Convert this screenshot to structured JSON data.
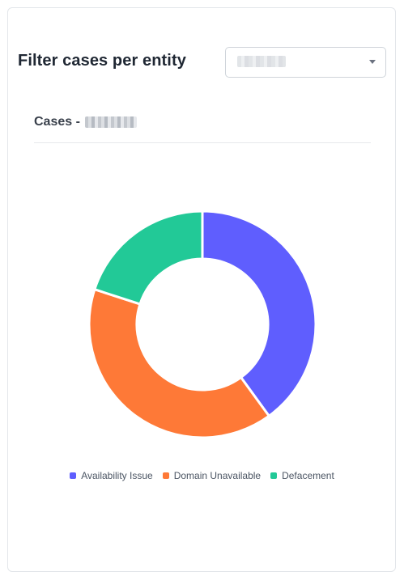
{
  "header": {
    "title": "Filter cases per entity"
  },
  "entity_select": {
    "selected_value": ""
  },
  "panel": {
    "subtitle": "Cases -"
  },
  "chart_data": {
    "type": "pie",
    "donut": true,
    "categories": [
      "Availability Issue",
      "Domain Unavailable",
      "Defacement"
    ],
    "values": [
      2,
      2,
      1
    ],
    "colors": [
      "#5f5efe",
      "#fe7937",
      "#22c997"
    ],
    "legend_position": "bottom"
  },
  "legend": {
    "items": [
      {
        "label": "Availability Issue",
        "color": "#5f5efe"
      },
      {
        "label": "Domain Unavailable",
        "color": "#fe7937"
      },
      {
        "label": "Defacement",
        "color": "#22c997"
      }
    ]
  }
}
